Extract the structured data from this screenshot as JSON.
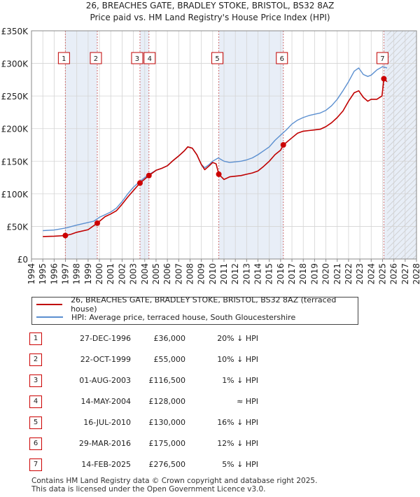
{
  "chart_data": {
    "type": "line",
    "title": "26, BREACHES GATE, BRADLEY STOKE, BRISTOL, BS32 8AZ",
    "subtitle": "Price paid vs. HM Land Registry's House Price Index (HPI)",
    "xlim": [
      1994,
      2028
    ],
    "ylim": [
      0,
      350000
    ],
    "x_ticks": [
      "1994",
      "1995",
      "1996",
      "1997",
      "1998",
      "1999",
      "2000",
      "2001",
      "2002",
      "2003",
      "2004",
      "2005",
      "2006",
      "2007",
      "2008",
      "2009",
      "2010",
      "2011",
      "2012",
      "2013",
      "2014",
      "2015",
      "2016",
      "2017",
      "2018",
      "2019",
      "2020",
      "2021",
      "2022",
      "2023",
      "2024",
      "2025",
      "2026",
      "2027",
      "2028"
    ],
    "y_ticks": [
      {
        "value": 0,
        "label": "£0"
      },
      {
        "value": 50000,
        "label": "£50K"
      },
      {
        "value": 100000,
        "label": "£100K"
      },
      {
        "value": 150000,
        "label": "£150K"
      },
      {
        "value": 200000,
        "label": "£200K"
      },
      {
        "value": 250000,
        "label": "£250K"
      },
      {
        "value": 300000,
        "label": "£300K"
      },
      {
        "value": 350000,
        "label": "£350K"
      }
    ],
    "data_start": 1995.0,
    "data_end": 2025.4,
    "shaded_bands": [
      [
        1996.99,
        1999.81
      ],
      [
        2003.58,
        2004.37
      ],
      [
        2010.54,
        2016.24
      ],
      [
        2025.12,
        2028
      ]
    ],
    "hatched_region": [
      2025.4,
      2028
    ],
    "series": [
      {
        "name": "HPI: Average price, terraced house, South Gloucestershire",
        "color": "#5b8fd0",
        "points": [
          [
            1995.0,
            43500
          ],
          [
            1996.0,
            44500
          ],
          [
            1997.0,
            47500
          ],
          [
            1998.0,
            52000
          ],
          [
            1999.0,
            56000
          ],
          [
            1999.5,
            58000
          ],
          [
            2000.0,
            64000
          ],
          [
            2000.5,
            68000
          ],
          [
            2001.0,
            72000
          ],
          [
            2001.5,
            78000
          ],
          [
            2002.0,
            88000
          ],
          [
            2002.5,
            100000
          ],
          [
            2003.0,
            110000
          ],
          [
            2003.5,
            118000
          ],
          [
            2004.0,
            125000
          ],
          [
            2004.5,
            131000
          ],
          [
            2005.0,
            136000
          ],
          [
            2005.5,
            139000
          ],
          [
            2006.0,
            143000
          ],
          [
            2006.5,
            151000
          ],
          [
            2007.0,
            158000
          ],
          [
            2007.5,
            166000
          ],
          [
            2007.8,
            172000
          ],
          [
            2008.2,
            170000
          ],
          [
            2008.6,
            160000
          ],
          [
            2009.0,
            145000
          ],
          [
            2009.3,
            140000
          ],
          [
            2009.7,
            145000
          ],
          [
            2010.0,
            150000
          ],
          [
            2010.5,
            155000
          ],
          [
            2011.0,
            150000
          ],
          [
            2011.5,
            148000
          ],
          [
            2012.0,
            149000
          ],
          [
            2012.5,
            150000
          ],
          [
            2013.0,
            152000
          ],
          [
            2013.5,
            155000
          ],
          [
            2014.0,
            160000
          ],
          [
            2014.5,
            166000
          ],
          [
            2015.0,
            172000
          ],
          [
            2015.5,
            182000
          ],
          [
            2016.0,
            190000
          ],
          [
            2016.5,
            198000
          ],
          [
            2017.0,
            207000
          ],
          [
            2017.5,
            213000
          ],
          [
            2018.0,
            217000
          ],
          [
            2018.5,
            220000
          ],
          [
            2019.0,
            222000
          ],
          [
            2019.5,
            224000
          ],
          [
            2020.0,
            228000
          ],
          [
            2020.5,
            235000
          ],
          [
            2021.0,
            245000
          ],
          [
            2021.5,
            258000
          ],
          [
            2022.0,
            272000
          ],
          [
            2022.5,
            288000
          ],
          [
            2022.9,
            293000
          ],
          [
            2023.3,
            283000
          ],
          [
            2023.7,
            280000
          ],
          [
            2024.0,
            282000
          ],
          [
            2024.5,
            290000
          ],
          [
            2025.0,
            295000
          ],
          [
            2025.4,
            293000
          ]
        ]
      },
      {
        "name": "26, BREACHES GATE, BRADLEY STOKE, BRISTOL, BS32 8AZ (terraced house)",
        "color": "#c00000",
        "points": [
          [
            1995.0,
            34500
          ],
          [
            1996.0,
            35000
          ],
          [
            1996.99,
            36000
          ],
          [
            1997.5,
            38000
          ],
          [
            1998.0,
            41000
          ],
          [
            1999.0,
            45000
          ],
          [
            1999.81,
            55000
          ],
          [
            2000.5,
            65000
          ],
          [
            2001.0,
            69000
          ],
          [
            2001.5,
            74000
          ],
          [
            2002.0,
            84000
          ],
          [
            2002.5,
            95000
          ],
          [
            2003.0,
            105000
          ],
          [
            2003.58,
            116500
          ],
          [
            2004.37,
            128000
          ],
          [
            2005.0,
            136000
          ],
          [
            2005.5,
            139000
          ],
          [
            2006.0,
            143000
          ],
          [
            2006.5,
            151000
          ],
          [
            2007.0,
            158000
          ],
          [
            2007.5,
            166000
          ],
          [
            2007.8,
            172000
          ],
          [
            2008.2,
            170000
          ],
          [
            2008.6,
            160000
          ],
          [
            2009.0,
            145000
          ],
          [
            2009.3,
            137000
          ],
          [
            2009.7,
            143000
          ],
          [
            2010.0,
            148000
          ],
          [
            2010.3,
            146000
          ],
          [
            2010.54,
            130000
          ],
          [
            2011.0,
            122000
          ],
          [
            2011.5,
            126000
          ],
          [
            2012.0,
            127000
          ],
          [
            2012.5,
            128000
          ],
          [
            2013.0,
            130000
          ],
          [
            2013.5,
            132000
          ],
          [
            2014.0,
            135000
          ],
          [
            2014.5,
            142000
          ],
          [
            2015.0,
            150000
          ],
          [
            2015.5,
            160000
          ],
          [
            2016.0,
            167000
          ],
          [
            2016.24,
            175000
          ],
          [
            2016.6,
            180000
          ],
          [
            2017.0,
            186000
          ],
          [
            2017.5,
            193000
          ],
          [
            2018.0,
            196000
          ],
          [
            2018.5,
            197000
          ],
          [
            2019.0,
            198000
          ],
          [
            2019.5,
            199000
          ],
          [
            2020.0,
            203000
          ],
          [
            2020.5,
            209000
          ],
          [
            2021.0,
            217000
          ],
          [
            2021.5,
            227000
          ],
          [
            2022.0,
            242000
          ],
          [
            2022.5,
            255000
          ],
          [
            2022.9,
            258000
          ],
          [
            2023.3,
            248000
          ],
          [
            2023.7,
            242000
          ],
          [
            2024.0,
            245000
          ],
          [
            2024.5,
            245000
          ],
          [
            2024.95,
            250000
          ],
          [
            2025.12,
            276500
          ],
          [
            2025.4,
            272000
          ]
        ]
      }
    ],
    "markers": [
      {
        "id": "1",
        "x": 1996.99,
        "y": 36000
      },
      {
        "id": "2",
        "x": 1999.81,
        "y": 55000
      },
      {
        "id": "3",
        "x": 2003.58,
        "y": 116500
      },
      {
        "id": "4",
        "x": 2004.37,
        "y": 128000
      },
      {
        "id": "5",
        "x": 2010.54,
        "y": 130000
      },
      {
        "id": "6",
        "x": 2016.24,
        "y": 175000
      },
      {
        "id": "7",
        "x": 2025.12,
        "y": 276500
      }
    ]
  },
  "legend": {
    "property_label": "26, BREACHES GATE, BRADLEY STOKE, BRISTOL, BS32 8AZ (terraced house)",
    "hpi_label": "HPI: Average price, terraced house, South Gloucestershire",
    "property_color": "#c00000",
    "hpi_color": "#5b8fd0"
  },
  "sales": [
    {
      "num": "1",
      "date": "27-DEC-1996",
      "price": "£36,000",
      "hpi": "20% ↓ HPI"
    },
    {
      "num": "2",
      "date": "22-OCT-1999",
      "price": "£55,000",
      "hpi": "10% ↓ HPI"
    },
    {
      "num": "3",
      "date": "01-AUG-2003",
      "price": "£116,500",
      "hpi": "1% ↓ HPI"
    },
    {
      "num": "4",
      "date": "14-MAY-2004",
      "price": "£128,000",
      "hpi": "≈ HPI"
    },
    {
      "num": "5",
      "date": "16-JUL-2010",
      "price": "£130,000",
      "hpi": "16% ↓ HPI"
    },
    {
      "num": "6",
      "date": "29-MAR-2016",
      "price": "£175,000",
      "hpi": "12% ↓ HPI"
    },
    {
      "num": "7",
      "date": "14-FEB-2025",
      "price": "£276,500",
      "hpi": "5% ↓ HPI"
    }
  ],
  "footer": {
    "line1": "Contains HM Land Registry data © Crown copyright and database right 2025.",
    "line2": "This data is licensed under the Open Government Licence v3.0."
  }
}
